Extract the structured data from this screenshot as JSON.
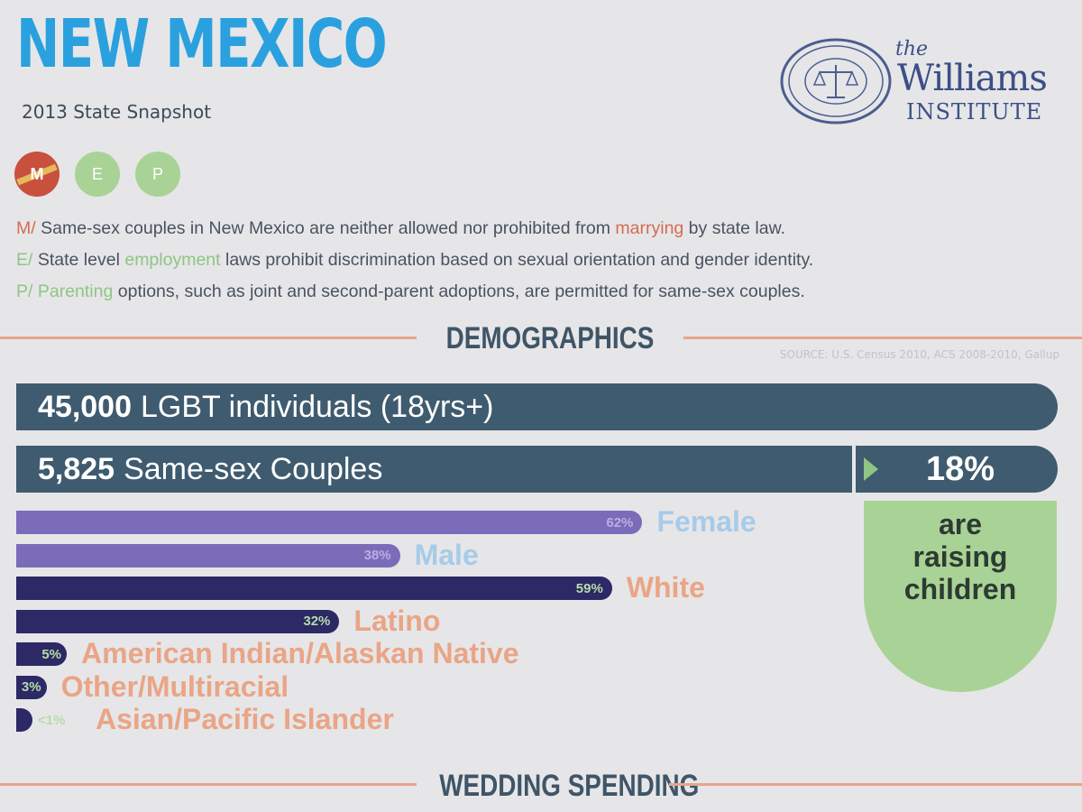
{
  "header": {
    "title": "NEW MEXICO",
    "subtitle": "2013 State Snapshot"
  },
  "logo": {
    "the": "the",
    "name": "Williams",
    "institute": "INSTITUTE"
  },
  "badges": [
    {
      "letter": "M",
      "color": "#c9503d"
    },
    {
      "letter": "E",
      "color": "#a9d396"
    },
    {
      "letter": "P",
      "color": "#a9d396"
    }
  ],
  "laws": {
    "m": {
      "prefix": "M/",
      "before": "Same-sex couples in New Mexico are neither allowed nor prohibited from ",
      "highlight": "marrying",
      "after": " by state law."
    },
    "e": {
      "prefix": "E/",
      "before": "State level ",
      "highlight": "employment",
      "after": " laws prohibit discrimination based on sexual orientation and gender identity."
    },
    "p": {
      "prefix": "P/",
      "before": "",
      "highlight": "Parenting",
      "after": " options, such as joint and second-parent adoptions, are permitted for same-sex couples."
    }
  },
  "demographics": {
    "heading": "DEMOGRAPHICS",
    "source": "SOURCE: U.S. Census 2010, ACS 2008-2010, Gallup",
    "lgbt_count": "45,000",
    "lgbt_label": "LGBT individuals (18yrs+)",
    "couples_count": "5,825",
    "couples_label": "Same-sex Couples",
    "raising_pct": "18%",
    "raising_line1": "are",
    "raising_line2": "raising",
    "raising_line3": "children"
  },
  "chart_data": {
    "type": "bar",
    "categories": [
      "Female",
      "Male",
      "White",
      "Latino",
      "American Indian/Alaskan Native",
      "Other/Multiracial",
      "Asian/Pacific Islander"
    ],
    "values": [
      62,
      38,
      59,
      32,
      5,
      3,
      1
    ],
    "value_labels": [
      "62%",
      "38%",
      "59%",
      "32%",
      "5%",
      "3%",
      "<1%"
    ]
  },
  "wedding": {
    "heading": "WEDDING SPENDING"
  },
  "colors": {
    "title": "#2aa1de",
    "bar_dark": "#3f5b6f",
    "gender_bar": "#7a6cb8",
    "race_bar": "#2c2966",
    "green": "#a9d396",
    "accent_orange": "#e9a586"
  }
}
